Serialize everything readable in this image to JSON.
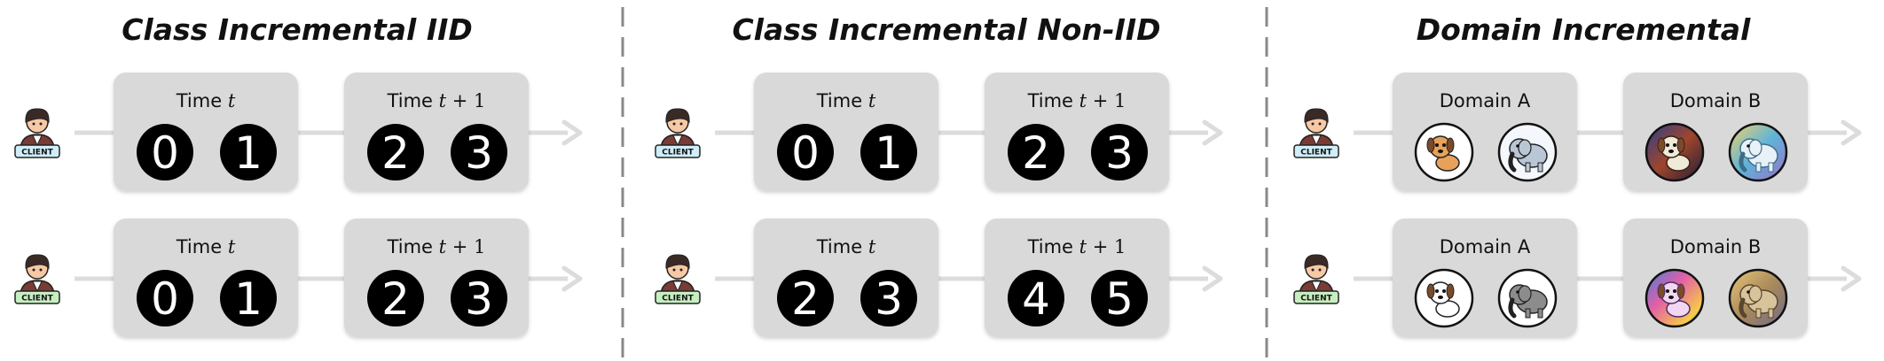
{
  "panels": [
    {
      "title": "Class Incremental IID",
      "rows": [
        {
          "client_label": "CLIENT",
          "client_color": "#cfeefa",
          "steps": [
            {
              "label": "Time",
              "var": "t",
              "suffix": "",
              "items": [
                "0",
                "1"
              ]
            },
            {
              "label": "Time",
              "var": "t",
              "suffix": " + 1",
              "items": [
                "2",
                "3"
              ]
            }
          ]
        },
        {
          "client_label": "CLIENT",
          "client_color": "#c7eec1",
          "steps": [
            {
              "label": "Time",
              "var": "t",
              "suffix": "",
              "items": [
                "0",
                "1"
              ]
            },
            {
              "label": "Time",
              "var": "t",
              "suffix": " + 1",
              "items": [
                "2",
                "3"
              ]
            }
          ]
        }
      ]
    },
    {
      "title": "Class Incremental Non-IID",
      "rows": [
        {
          "client_label": "CLIENT",
          "client_color": "#cfeefa",
          "steps": [
            {
              "label": "Time",
              "var": "t",
              "suffix": "",
              "items": [
                "0",
                "1"
              ]
            },
            {
              "label": "Time",
              "var": "t",
              "suffix": " + 1",
              "items": [
                "2",
                "3"
              ]
            }
          ]
        },
        {
          "client_label": "CLIENT",
          "client_color": "#c7eec1",
          "steps": [
            {
              "label": "Time",
              "var": "t",
              "suffix": "",
              "items": [
                "2",
                "3"
              ]
            },
            {
              "label": "Time",
              "var": "t",
              "suffix": " + 1",
              "items": [
                "4",
                "5"
              ]
            }
          ]
        }
      ]
    },
    {
      "title": "Domain Incremental",
      "rows": [
        {
          "client_label": "CLIENT",
          "client_color": "#cfeefa",
          "steps": [
            {
              "label": "Domain A",
              "var": "",
              "suffix": "",
              "images": [
                "cartoon-dog-icon",
                "cartoon-elephant-icon"
              ]
            },
            {
              "label": "Domain B",
              "var": "",
              "suffix": "",
              "images": [
                "painted-dog-icon",
                "painted-elephant-icon"
              ]
            }
          ]
        },
        {
          "client_label": "CLIENT",
          "client_color": "#c7eec1",
          "steps": [
            {
              "label": "Domain A",
              "var": "",
              "suffix": "",
              "images": [
                "sketch-dog-icon",
                "sketch-elephant-icon"
              ]
            },
            {
              "label": "Domain B",
              "var": "",
              "suffix": "",
              "images": [
                "colorful-dog-icon",
                "colorful-elephant-icon"
              ]
            }
          ]
        }
      ]
    }
  ],
  "colors": {
    "box": "#d9d9d9",
    "arrow": "#dcdcdc",
    "divider": "#888888",
    "digit_bg": "#000000",
    "digit_fg": "#ffffff"
  }
}
